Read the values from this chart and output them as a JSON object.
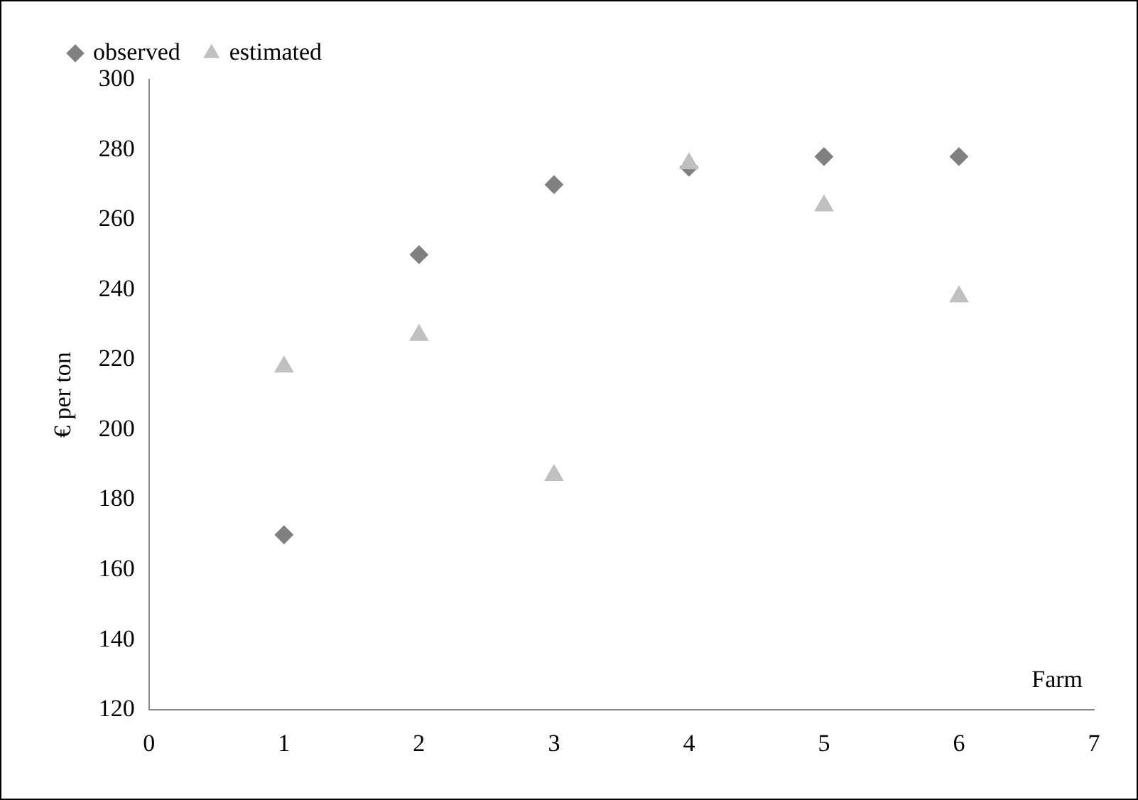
{
  "chart_data": {
    "type": "scatter",
    "xlabel": "Farm",
    "ylabel": "€ per ton",
    "xlim": [
      0,
      7
    ],
    "xticks": [
      0,
      1,
      2,
      3,
      4,
      5,
      6,
      7
    ],
    "ylim": [
      120,
      300
    ],
    "yticks": [
      120,
      140,
      160,
      180,
      200,
      220,
      240,
      260,
      280,
      300
    ],
    "grid": false,
    "legend": "top left",
    "x": [
      1,
      2,
      3,
      4,
      5,
      6
    ],
    "series": [
      {
        "name": "observed",
        "color": "#808080",
        "marker": "diamond",
        "values": [
          170,
          250,
          270,
          275,
          278,
          278
        ]
      },
      {
        "name": "estimated",
        "color": "#c0c0c0",
        "marker": "triangle",
        "values": [
          218,
          227,
          187,
          276,
          264,
          238
        ]
      }
    ]
  }
}
